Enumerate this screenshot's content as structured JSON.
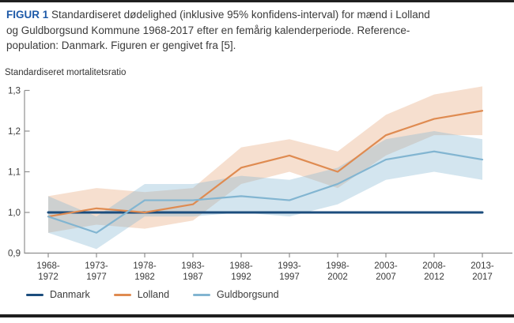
{
  "caption": {
    "label": "FIGUR 1",
    "line1": "Standardiseret dødelighed (inklusive 95% konfidens-interval) for mænd i Lolland",
    "line2": "og Guldborgsund Kommune 1968-2017 efter en femårig kalenderperiode. Reference-",
    "line3": "population: Danmark. Figuren er gengivet fra [5]."
  },
  "colors": {
    "danmark": "#1c4d7d",
    "lolland": "#df8b51",
    "guldborgsund": "#82b5d1",
    "axis": "#8f8f8f",
    "caption_label": "#1e5aa8",
    "rule": "#1f1f1f"
  },
  "chart_data": {
    "type": "line",
    "title": "",
    "xlabel": "",
    "ylabel": "Standardiseret mortalitetsratio",
    "grid": false,
    "legend_position": "bottom",
    "ylim": [
      0.9,
      1.3
    ],
    "ytick_values": [
      0.9,
      1.0,
      1.1,
      1.2,
      1.3
    ],
    "ytick_labels": [
      "0,9",
      "1,0",
      "1,1",
      "1,2",
      "1,3"
    ],
    "categories": [
      "1968-1972",
      "1973-1977",
      "1978-1982",
      "1983-1987",
      "1988-1992",
      "1993-1997",
      "1998-2002",
      "2003-2007",
      "2008-2012",
      "2013-2017"
    ],
    "series": [
      {
        "name": "Danmark",
        "color": "#1c4d7d",
        "line_width": 3,
        "values": [
          1.0,
          1.0,
          1.0,
          1.0,
          1.0,
          1.0,
          1.0,
          1.0,
          1.0,
          1.0
        ],
        "ci_low": null,
        "ci_high": null
      },
      {
        "name": "Lolland",
        "color": "#df8b51",
        "line_width": 2.2,
        "band_opacity": 0.28,
        "values": [
          0.99,
          1.01,
          1.0,
          1.02,
          1.11,
          1.14,
          1.1,
          1.19,
          1.23,
          1.25
        ],
        "ci_low": [
          0.95,
          0.97,
          0.96,
          0.98,
          1.07,
          1.1,
          1.06,
          1.14,
          1.19,
          1.19
        ],
        "ci_high": [
          1.04,
          1.06,
          1.05,
          1.06,
          1.16,
          1.18,
          1.15,
          1.24,
          1.29,
          1.31
        ]
      },
      {
        "name": "Guldborgsund",
        "color": "#82b5d1",
        "line_width": 2.2,
        "band_opacity": 0.35,
        "values": [
          0.99,
          0.95,
          1.03,
          1.03,
          1.04,
          1.03,
          1.07,
          1.13,
          1.15,
          1.13
        ],
        "ci_low": [
          0.95,
          0.91,
          0.99,
          0.99,
          1.0,
          0.99,
          1.02,
          1.08,
          1.1,
          1.08
        ],
        "ci_high": [
          1.04,
          0.99,
          1.07,
          1.07,
          1.09,
          1.08,
          1.11,
          1.18,
          1.2,
          1.18
        ]
      }
    ]
  }
}
